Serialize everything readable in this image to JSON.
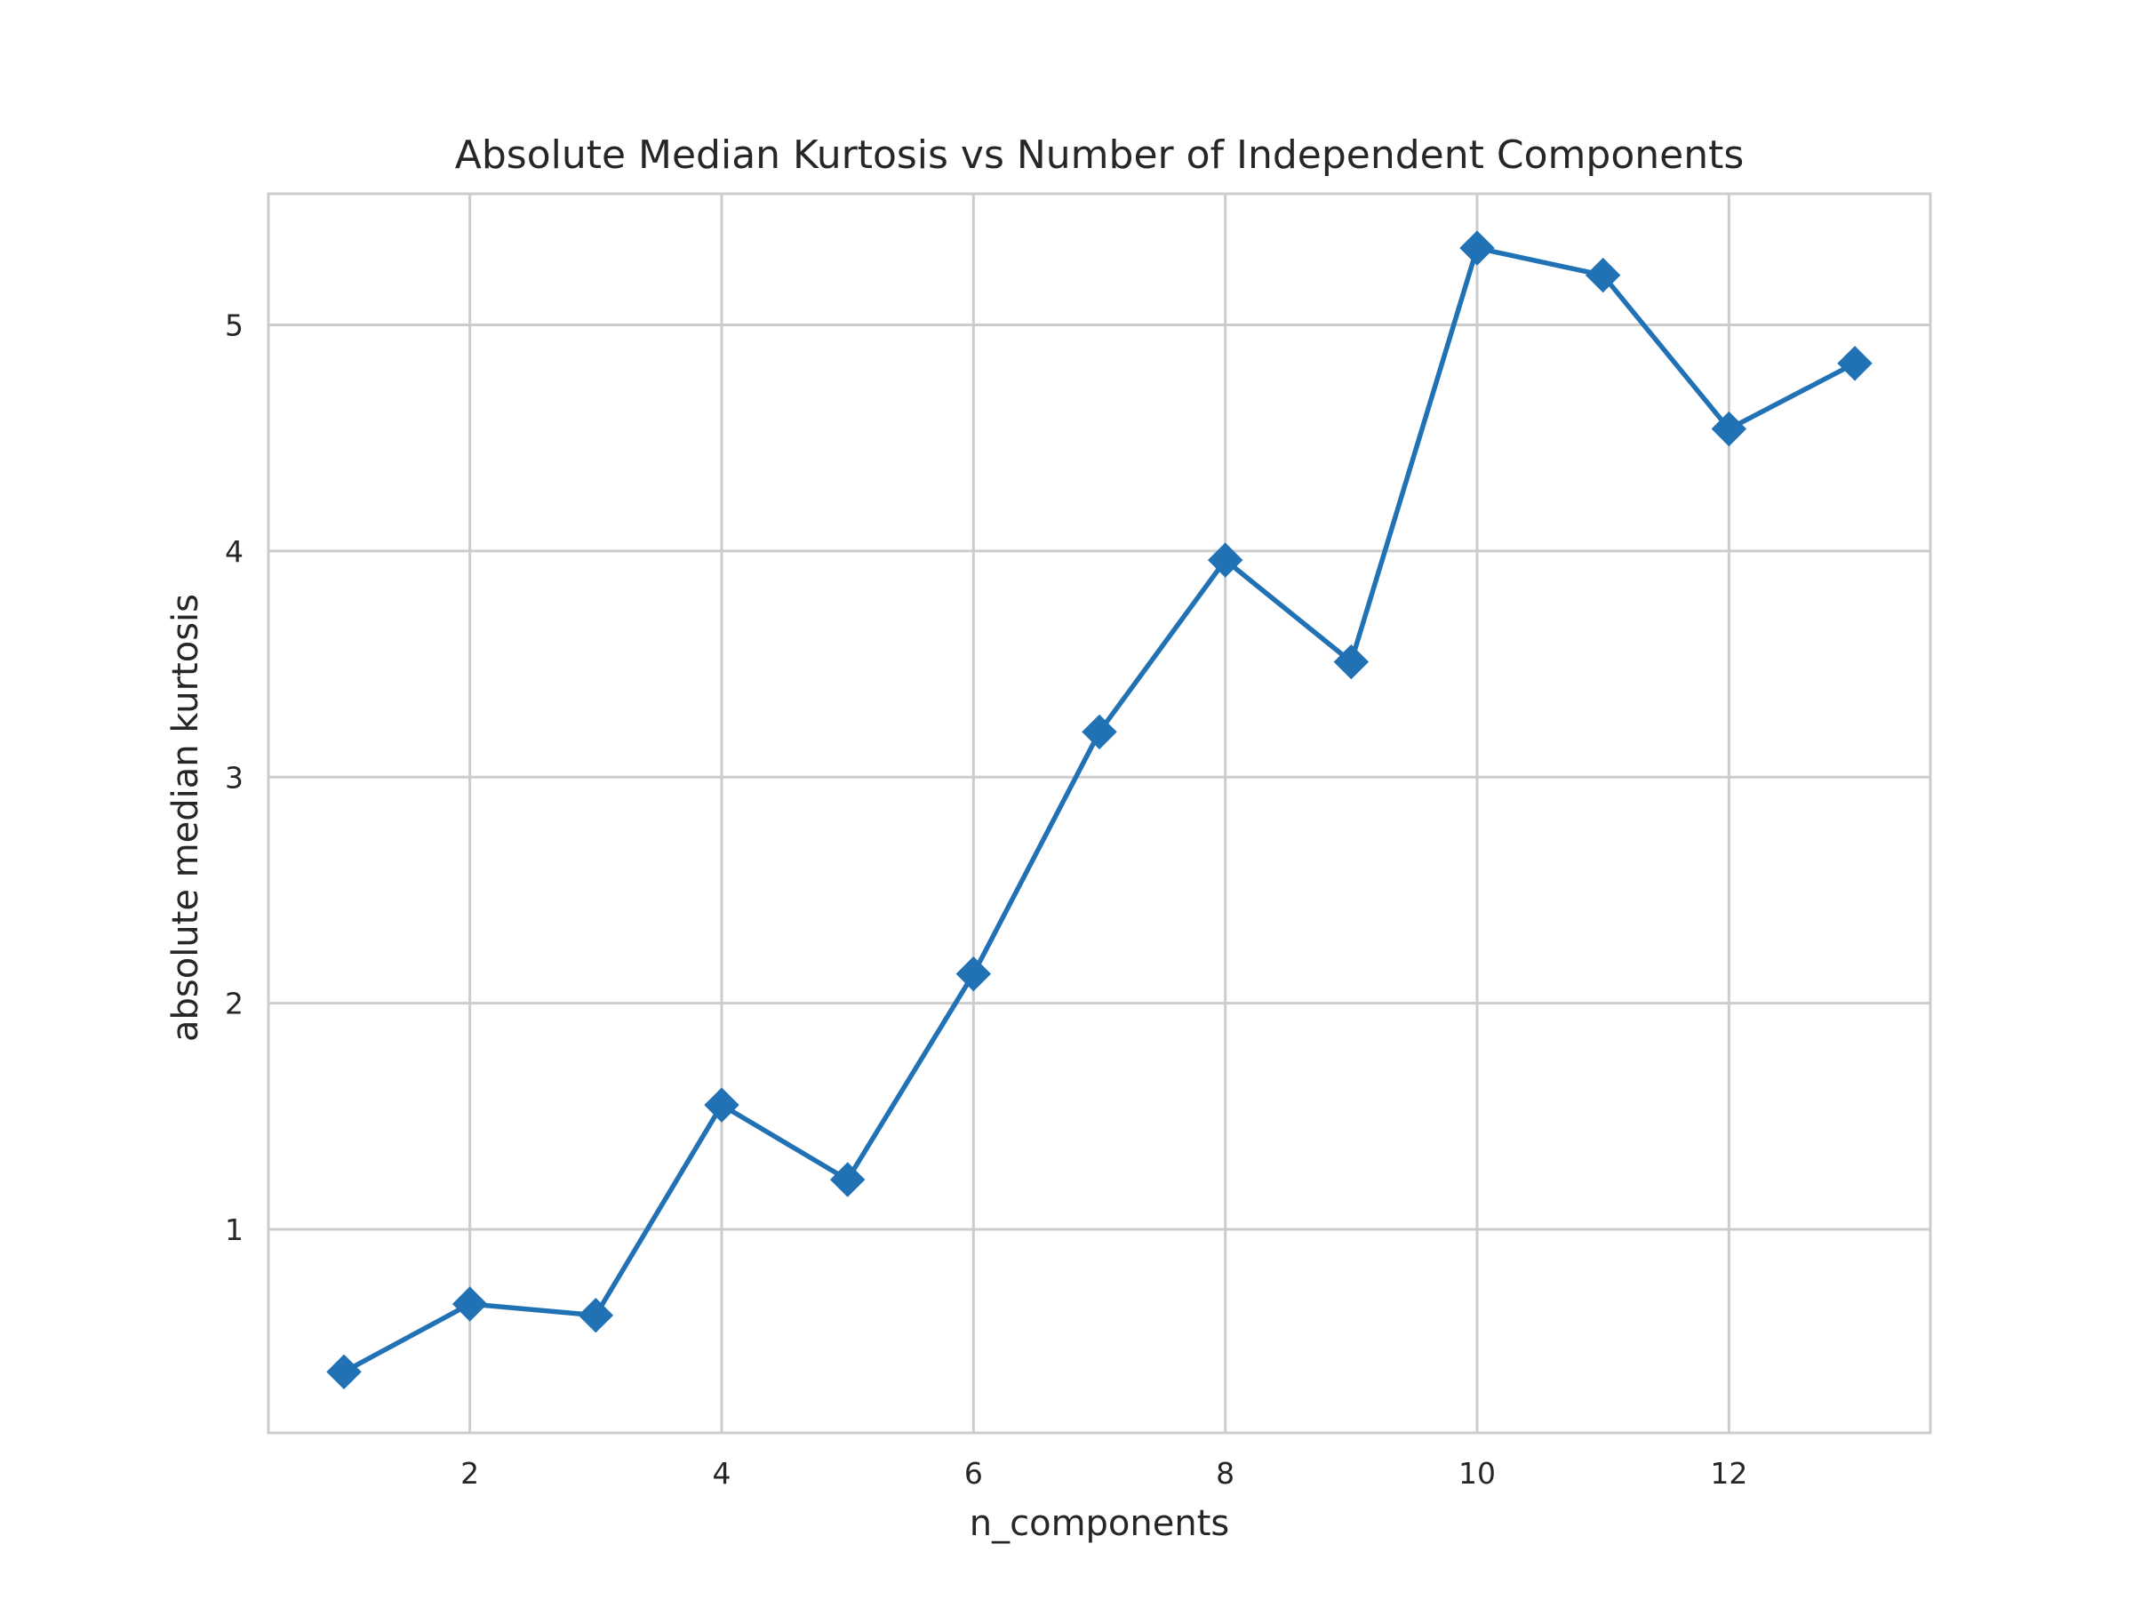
{
  "chart_data": {
    "type": "line",
    "title": "Absolute Median Kurtosis vs Number of Independent Components",
    "xlabel": "n_components",
    "ylabel": "absolute median kurtosis",
    "xlim": [
      0.4,
      13.6
    ],
    "ylim": [
      0.1,
      5.58
    ],
    "x_ticks": [
      2,
      4,
      6,
      8,
      10,
      12
    ],
    "y_ticks": [
      1,
      2,
      3,
      4,
      5
    ],
    "grid": true,
    "legend": "none",
    "series": [
      {
        "marker": "diamond",
        "color": "#2171b5",
        "points": [
          {
            "x": 1,
            "y": 0.37
          },
          {
            "x": 2,
            "y": 0.67
          },
          {
            "x": 3,
            "y": 0.62
          },
          {
            "x": 4,
            "y": 1.55
          },
          {
            "x": 5,
            "y": 1.22
          },
          {
            "x": 6,
            "y": 2.13
          },
          {
            "x": 7,
            "y": 3.2
          },
          {
            "x": 8,
            "y": 3.96
          },
          {
            "x": 9,
            "y": 3.51
          },
          {
            "x": 10,
            "y": 5.34
          },
          {
            "x": 11,
            "y": 5.22
          },
          {
            "x": 12,
            "y": 4.54
          },
          {
            "x": 13,
            "y": 4.83
          }
        ]
      }
    ]
  },
  "colors": {
    "line": "#2171b5",
    "grid": "#cccccc",
    "axes_edge": "#cccccc",
    "text": "#262626",
    "background": "#ffffff"
  }
}
